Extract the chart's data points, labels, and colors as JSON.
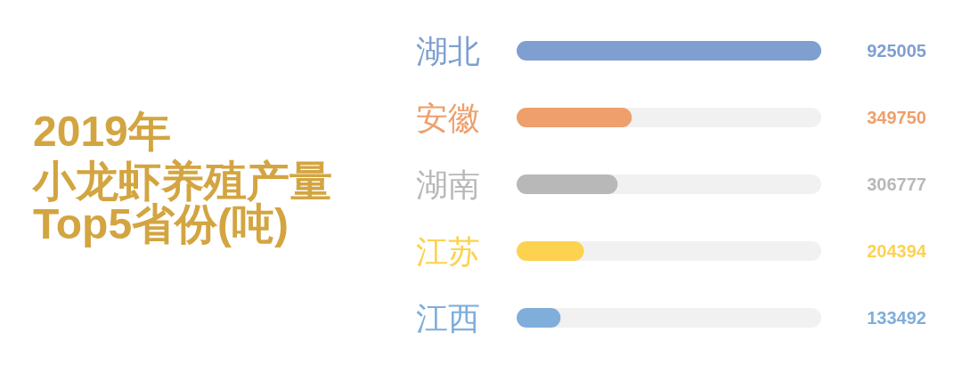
{
  "chart_data": {
    "type": "bar",
    "orientation": "horizontal",
    "title": "2019年",
    "subtitle": "小龙虾养殖产量Top5省份(吨)",
    "categories": [
      "湖北",
      "安徽",
      "湖南",
      "江苏",
      "江西"
    ],
    "values": [
      925005,
      349750,
      306777,
      204394,
      133492
    ],
    "colors": [
      "#7f9fd1",
      "#ee9f6b",
      "#b8b8b8",
      "#fdd24f",
      "#7faedb"
    ],
    "data_labels": true
  }
}
